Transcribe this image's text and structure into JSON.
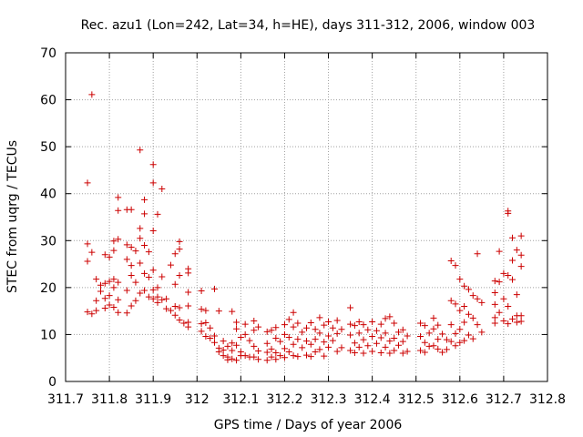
{
  "chart_data": {
    "type": "scatter",
    "title": "Rec. azu1 (Lon=242, Lat=34, h=HE), days 311-312, 2006, window 003",
    "xlabel": "GPS time / Days of year 2006",
    "ylabel": "STEC from uqrg / TECUs",
    "xlim": [
      311.7,
      312.8
    ],
    "ylim": [
      0,
      70
    ],
    "x_ticks": [
      311.7,
      311.8,
      311.9,
      312.0,
      312.1,
      312.2,
      312.3,
      312.4,
      312.5,
      312.6,
      312.7,
      312.8
    ],
    "x_tick_labels": [
      "311.7",
      "311.8",
      "311.9",
      "312",
      "312.1",
      "312.2",
      "312.3",
      "312.4",
      "312.5",
      "312.6",
      "312.7",
      "312.8"
    ],
    "y_ticks": [
      0,
      10,
      20,
      30,
      40,
      50,
      60,
      70
    ],
    "y_tick_labels": [
      "0",
      "10",
      "20",
      "30",
      "40",
      "50",
      "60",
      "70"
    ],
    "grid": true,
    "marker": "+",
    "color": "#cc0000",
    "series": [
      {
        "points": [
          [
            311.75,
            42.3
          ],
          [
            311.76,
            61.1
          ],
          [
            311.75,
            29.3
          ],
          [
            311.75,
            25.6
          ],
          [
            311.76,
            27.5
          ],
          [
            311.77,
            21.8
          ],
          [
            311.77,
            17.2
          ],
          [
            311.75,
            14.8
          ],
          [
            311.76,
            14.4
          ],
          [
            311.77,
            15.1
          ],
          [
            311.78,
            20.5
          ],
          [
            311.78,
            19.2
          ],
          [
            311.79,
            27.0
          ],
          [
            311.79,
            20.9
          ],
          [
            311.79,
            17.7
          ],
          [
            311.79,
            15.6
          ],
          [
            311.8,
            26.5
          ],
          [
            311.8,
            21.3
          ],
          [
            311.8,
            18.3
          ],
          [
            311.8,
            16.3
          ],
          [
            311.81,
            29.9
          ],
          [
            311.81,
            27.9
          ],
          [
            311.81,
            21.8
          ],
          [
            311.81,
            20.0
          ],
          [
            311.81,
            15.8
          ],
          [
            311.82,
            39.2
          ],
          [
            311.82,
            36.4
          ],
          [
            311.82,
            30.3
          ],
          [
            311.82,
            21.1
          ],
          [
            311.82,
            17.4
          ],
          [
            311.82,
            14.7
          ],
          [
            311.84,
            36.6
          ],
          [
            311.84,
            29.1
          ],
          [
            311.84,
            26.0
          ],
          [
            311.84,
            19.4
          ],
          [
            311.84,
            14.6
          ],
          [
            311.85,
            36.6
          ],
          [
            311.85,
            28.6
          ],
          [
            311.85,
            24.7
          ],
          [
            311.85,
            22.6
          ],
          [
            311.85,
            16.1
          ],
          [
            311.86,
            27.8
          ],
          [
            311.86,
            21.1
          ],
          [
            311.86,
            17.2
          ],
          [
            311.87,
            49.3
          ],
          [
            311.87,
            32.6
          ],
          [
            311.87,
            30.5
          ],
          [
            311.87,
            25.2
          ],
          [
            311.87,
            18.8
          ],
          [
            311.88,
            38.7
          ],
          [
            311.88,
            35.7
          ],
          [
            311.88,
            29.0
          ],
          [
            311.88,
            23.0
          ],
          [
            311.88,
            19.4
          ],
          [
            311.89,
            27.6
          ],
          [
            311.89,
            22.2
          ],
          [
            311.89,
            18.0
          ],
          [
            311.9,
            46.2
          ],
          [
            311.9,
            42.3
          ],
          [
            311.9,
            32.1
          ],
          [
            311.9,
            23.7
          ],
          [
            311.9,
            19.5
          ],
          [
            311.9,
            17.6
          ],
          [
            311.91,
            35.6
          ],
          [
            311.91,
            20.0
          ],
          [
            311.91,
            18.0
          ],
          [
            311.91,
            16.8
          ],
          [
            311.92,
            41.0
          ],
          [
            311.92,
            22.3
          ],
          [
            311.92,
            17.4
          ],
          [
            311.93,
            17.6
          ],
          [
            311.93,
            15.5
          ],
          [
            311.94,
            24.8
          ],
          [
            311.94,
            15.1
          ],
          [
            311.95,
            27.2
          ],
          [
            311.95,
            20.7
          ],
          [
            311.95,
            16.0
          ],
          [
            311.95,
            14.1
          ],
          [
            311.96,
            29.8
          ],
          [
            311.96,
            28.2
          ],
          [
            311.96,
            22.6
          ],
          [
            311.96,
            15.7
          ],
          [
            311.96,
            13.1
          ],
          [
            311.97,
            12.4
          ],
          [
            311.98,
            24.0
          ],
          [
            311.98,
            23.1
          ],
          [
            311.98,
            19.0
          ],
          [
            311.98,
            16.1
          ],
          [
            311.98,
            12.6
          ],
          [
            311.98,
            11.6
          ],
          [
            312.01,
            19.3
          ],
          [
            312.01,
            15.4
          ],
          [
            312.01,
            12.3
          ],
          [
            312.01,
            10.7
          ],
          [
            312.02,
            15.1
          ],
          [
            312.02,
            12.5
          ],
          [
            312.02,
            9.6
          ],
          [
            312.03,
            11.4
          ],
          [
            312.03,
            9.2
          ],
          [
            312.04,
            19.7
          ],
          [
            312.04,
            9.7
          ],
          [
            312.04,
            8.3
          ],
          [
            312.05,
            15.0
          ],
          [
            312.05,
            7.1
          ],
          [
            312.05,
            6.3
          ],
          [
            312.06,
            8.6
          ],
          [
            312.06,
            6.7
          ],
          [
            312.06,
            5.5
          ],
          [
            312.07,
            7.5
          ],
          [
            312.07,
            5.2
          ],
          [
            312.07,
            4.6
          ],
          [
            312.08,
            14.9
          ],
          [
            312.08,
            8.2
          ],
          [
            312.08,
            6.6
          ],
          [
            312.08,
            4.8
          ],
          [
            312.09,
            12.6
          ],
          [
            312.09,
            11.2
          ],
          [
            312.09,
            7.7
          ],
          [
            312.09,
            4.5
          ],
          [
            312.1,
            9.4
          ],
          [
            312.1,
            6.3
          ],
          [
            312.1,
            5.5
          ],
          [
            312.11,
            12.2
          ],
          [
            312.11,
            10.0
          ],
          [
            312.11,
            5.5
          ],
          [
            312.12,
            8.7
          ],
          [
            312.12,
            5.2
          ],
          [
            312.13,
            12.9
          ],
          [
            312.13,
            10.9
          ],
          [
            312.13,
            7.5
          ],
          [
            312.13,
            5.2
          ],
          [
            312.14,
            11.6
          ],
          [
            312.14,
            6.5
          ],
          [
            312.14,
            4.7
          ],
          [
            312.16,
            10.6
          ],
          [
            312.16,
            8.1
          ],
          [
            312.16,
            6.2
          ],
          [
            312.16,
            4.5
          ],
          [
            312.17,
            10.9
          ],
          [
            312.17,
            6.9
          ],
          [
            312.17,
            5.2
          ],
          [
            312.18,
            11.5
          ],
          [
            312.18,
            9.2
          ],
          [
            312.18,
            6.1
          ],
          [
            312.18,
            4.7
          ],
          [
            312.19,
            8.5
          ],
          [
            312.19,
            5.5
          ],
          [
            312.2,
            12.1
          ],
          [
            312.2,
            10.0
          ],
          [
            312.2,
            7.0
          ],
          [
            312.2,
            5.1
          ],
          [
            312.21,
            13.2
          ],
          [
            312.21,
            9.4
          ],
          [
            312.21,
            6.3
          ],
          [
            312.22,
            14.7
          ],
          [
            312.22,
            11.6
          ],
          [
            312.22,
            7.9
          ],
          [
            312.22,
            5.5
          ],
          [
            312.23,
            12.4
          ],
          [
            312.23,
            9.0
          ],
          [
            312.23,
            5.3
          ],
          [
            312.24,
            10.5
          ],
          [
            312.24,
            7.2
          ],
          [
            312.25,
            11.4
          ],
          [
            312.25,
            8.6
          ],
          [
            312.25,
            5.6
          ],
          [
            312.26,
            12.5
          ],
          [
            312.26,
            7.9
          ],
          [
            312.26,
            5.3
          ],
          [
            312.27,
            11.1
          ],
          [
            312.27,
            9.0
          ],
          [
            312.27,
            6.3
          ],
          [
            312.28,
            13.6
          ],
          [
            312.28,
            10.3
          ],
          [
            312.28,
            6.8
          ],
          [
            312.29,
            12.0
          ],
          [
            312.29,
            8.4
          ],
          [
            312.29,
            5.4
          ],
          [
            312.3,
            12.7
          ],
          [
            312.3,
            9.7
          ],
          [
            312.3,
            7.3
          ],
          [
            312.31,
            11.4
          ],
          [
            312.31,
            8.7
          ],
          [
            312.32,
            13.0
          ],
          [
            312.32,
            10.2
          ],
          [
            312.32,
            6.4
          ],
          [
            312.33,
            11.1
          ],
          [
            312.33,
            7.2
          ],
          [
            312.35,
            15.7
          ],
          [
            312.35,
            12.2
          ],
          [
            312.35,
            9.9
          ],
          [
            312.35,
            6.6
          ],
          [
            312.36,
            11.9
          ],
          [
            312.36,
            8.2
          ],
          [
            312.36,
            6.1
          ],
          [
            312.37,
            12.7
          ],
          [
            312.37,
            10.3
          ],
          [
            312.37,
            7.3
          ],
          [
            312.38,
            12.1
          ],
          [
            312.38,
            8.9
          ],
          [
            312.38,
            6.0
          ],
          [
            312.39,
            11.0
          ],
          [
            312.39,
            7.6
          ],
          [
            312.4,
            12.7
          ],
          [
            312.4,
            9.6
          ],
          [
            312.4,
            6.4
          ],
          [
            312.41,
            10.8
          ],
          [
            312.41,
            8.1
          ],
          [
            312.42,
            12.2
          ],
          [
            312.42,
            9.3
          ],
          [
            312.42,
            6.1
          ],
          [
            312.43,
            13.4
          ],
          [
            312.43,
            10.3
          ],
          [
            312.43,
            7.3
          ],
          [
            312.44,
            13.8
          ],
          [
            312.44,
            8.6
          ],
          [
            312.44,
            6.0
          ],
          [
            312.45,
            12.4
          ],
          [
            312.45,
            9.2
          ],
          [
            312.45,
            6.6
          ],
          [
            312.46,
            10.5
          ],
          [
            312.46,
            7.7
          ],
          [
            312.47,
            11.0
          ],
          [
            312.47,
            8.5
          ],
          [
            312.47,
            6.0
          ],
          [
            312.48,
            9.7
          ],
          [
            312.48,
            6.4
          ],
          [
            312.51,
            12.4
          ],
          [
            312.51,
            9.6
          ],
          [
            312.51,
            6.6
          ],
          [
            312.52,
            11.9
          ],
          [
            312.52,
            8.3
          ],
          [
            312.52,
            6.2
          ],
          [
            312.53,
            10.3
          ],
          [
            312.53,
            7.5
          ],
          [
            312.54,
            13.5
          ],
          [
            312.54,
            11.2
          ],
          [
            312.54,
            7.6
          ],
          [
            312.55,
            12.0
          ],
          [
            312.55,
            9.0
          ],
          [
            312.55,
            6.9
          ],
          [
            312.56,
            10.1
          ],
          [
            312.56,
            6.2
          ],
          [
            312.57,
            8.9
          ],
          [
            312.57,
            6.8
          ],
          [
            312.58,
            25.7
          ],
          [
            312.58,
            17.2
          ],
          [
            312.58,
            12.1
          ],
          [
            312.58,
            8.5
          ],
          [
            312.59,
            24.7
          ],
          [
            312.59,
            16.5
          ],
          [
            312.59,
            10.2
          ],
          [
            312.59,
            7.6
          ],
          [
            312.6,
            21.8
          ],
          [
            312.6,
            15.1
          ],
          [
            312.6,
            11.1
          ],
          [
            312.6,
            8.3
          ],
          [
            312.61,
            20.3
          ],
          [
            312.61,
            16.0
          ],
          [
            312.61,
            12.6
          ],
          [
            312.61,
            8.7
          ],
          [
            312.62,
            19.6
          ],
          [
            312.62,
            14.3
          ],
          [
            312.62,
            9.9
          ],
          [
            312.63,
            18.3
          ],
          [
            312.63,
            13.5
          ],
          [
            312.63,
            9.1
          ],
          [
            312.64,
            27.2
          ],
          [
            312.64,
            17.6
          ],
          [
            312.64,
            12.1
          ],
          [
            312.65,
            16.8
          ],
          [
            312.65,
            10.5
          ],
          [
            312.68,
            21.4
          ],
          [
            312.68,
            18.9
          ],
          [
            312.68,
            16.4
          ],
          [
            312.68,
            13.6
          ],
          [
            312.68,
            12.4
          ],
          [
            312.69,
            27.7
          ],
          [
            312.69,
            21.2
          ],
          [
            312.69,
            14.7
          ],
          [
            312.7,
            23.0
          ],
          [
            312.7,
            17.6
          ],
          [
            312.7,
            12.9
          ],
          [
            312.71,
            36.3
          ],
          [
            312.71,
            35.8
          ],
          [
            312.71,
            22.6
          ],
          [
            312.71,
            16.0
          ],
          [
            312.71,
            12.3
          ],
          [
            312.72,
            30.6
          ],
          [
            312.72,
            25.8
          ],
          [
            312.72,
            21.7
          ],
          [
            312.72,
            13.3
          ],
          [
            312.73,
            28.0
          ],
          [
            312.73,
            18.5
          ],
          [
            312.73,
            14.0
          ],
          [
            312.73,
            12.6
          ],
          [
            312.74,
            31.0
          ],
          [
            312.74,
            26.9
          ],
          [
            312.74,
            24.5
          ],
          [
            312.74,
            14.0
          ],
          [
            312.74,
            12.8
          ]
        ]
      }
    ]
  }
}
